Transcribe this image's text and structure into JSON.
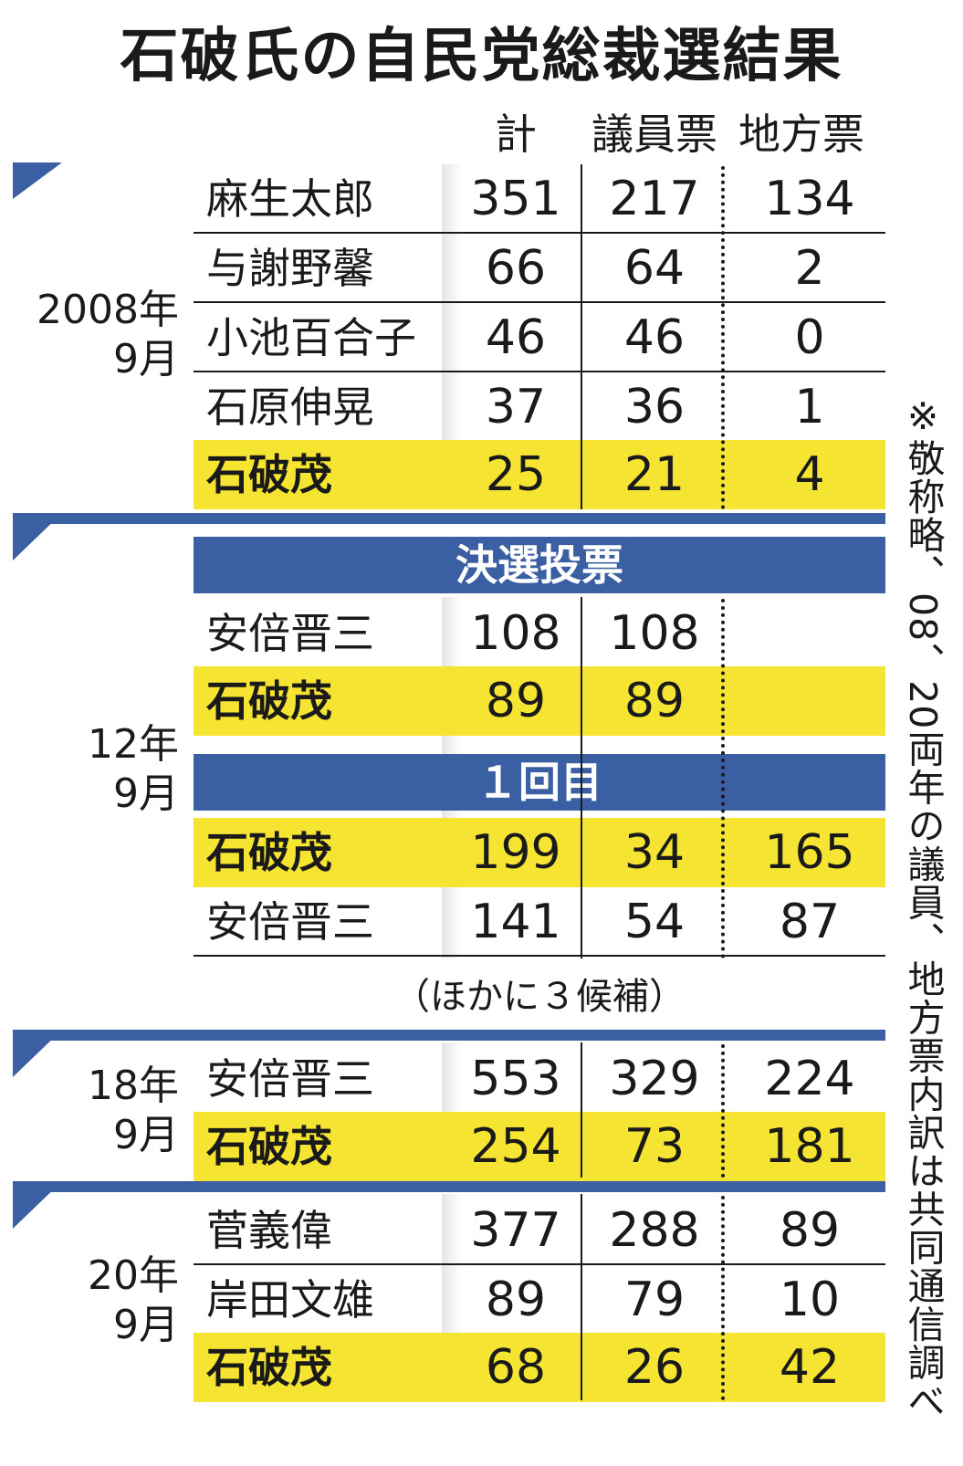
{
  "title": "石破氏の自民党総裁選結果",
  "columns": {
    "total": "計",
    "giin": "議員票",
    "chiho": "地方票"
  },
  "sections": [
    {
      "year": "2008年",
      "month": "9月",
      "rows": [
        {
          "name": "麻生太郎",
          "total": "351",
          "giin": "217",
          "chiho": "134"
        },
        {
          "name": "与謝野馨",
          "total": "66",
          "giin": "64",
          "chiho": "2"
        },
        {
          "name": "小池百合子",
          "total": "46",
          "giin": "46",
          "chiho": "0"
        },
        {
          "name": "石原伸晃",
          "total": "37",
          "giin": "36",
          "chiho": "1"
        },
        {
          "name": "石破茂",
          "total": "25",
          "giin": "21",
          "chiho": "4"
        }
      ]
    },
    {
      "year": "12年",
      "month": "9月",
      "runoff_label": "決選投票",
      "runoff_rows": [
        {
          "name": "安倍晋三",
          "total": "108",
          "giin": "108",
          "chiho": ""
        },
        {
          "name": "石破茂",
          "total": "89",
          "giin": "89",
          "chiho": ""
        }
      ],
      "first_label": "１回目",
      "first_rows": [
        {
          "name": "石破茂",
          "total": "199",
          "giin": "34",
          "chiho": "165"
        },
        {
          "name": "安倍晋三",
          "total": "141",
          "giin": "54",
          "chiho": "87"
        }
      ],
      "others_note": "（ほかに３候補）"
    },
    {
      "year": "18年",
      "month": "9月",
      "rows": [
        {
          "name": "安倍晋三",
          "total": "553",
          "giin": "329",
          "chiho": "224"
        },
        {
          "name": "石破茂",
          "total": "254",
          "giin": "73",
          "chiho": "181"
        }
      ]
    },
    {
      "year": "20年",
      "month": "9月",
      "rows": [
        {
          "name": "菅義偉",
          "total": "377",
          "giin": "288",
          "chiho": "89"
        },
        {
          "name": "岸田文雄",
          "total": "89",
          "giin": "79",
          "chiho": "10"
        },
        {
          "name": "石破茂",
          "total": "68",
          "giin": "26",
          "chiho": "42"
        }
      ]
    }
  ],
  "footnote": "※敬称略、08、20両年の議員、地方票内訳は共同通信調べ",
  "colors": {
    "highlight": "#f5e431",
    "accent_blue": "#3a5fa3"
  }
}
